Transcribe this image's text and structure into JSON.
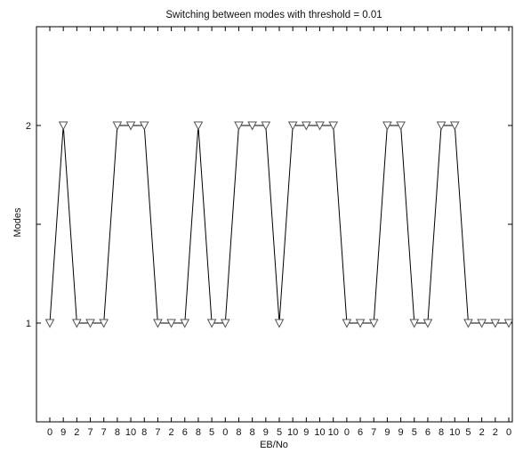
{
  "chart_data": {
    "type": "line",
    "title": "Switching between modes with threshold = 0.01",
    "xlabel": "EB/No",
    "ylabel": "Modes",
    "categories": [
      "0",
      "9",
      "2",
      "7",
      "7",
      "8",
      "10",
      "8",
      "7",
      "2",
      "6",
      "8",
      "5",
      "0",
      "8",
      "8",
      "9",
      "5",
      "10",
      "9",
      "10",
      "10",
      "0",
      "6",
      "7",
      "9",
      "9",
      "5",
      "6",
      "8",
      "10",
      "5",
      "2",
      "2",
      "0"
    ],
    "series": [
      {
        "values": [
          1,
          2,
          1,
          1,
          1,
          2,
          2,
          2,
          1,
          1,
          1,
          2,
          1,
          1,
          2,
          2,
          2,
          1,
          2,
          2,
          2,
          2,
          1,
          1,
          1,
          2,
          2,
          1,
          1,
          2,
          2,
          1,
          1,
          1,
          1
        ]
      }
    ],
    "ylim": [
      0.5,
      2.5
    ],
    "yticks": [
      1,
      2
    ],
    "marker": "triangle-down",
    "grid": false,
    "colors": {
      "line": "#000000",
      "marker_stroke": "#555555",
      "marker_fill": "#ffffff"
    }
  }
}
